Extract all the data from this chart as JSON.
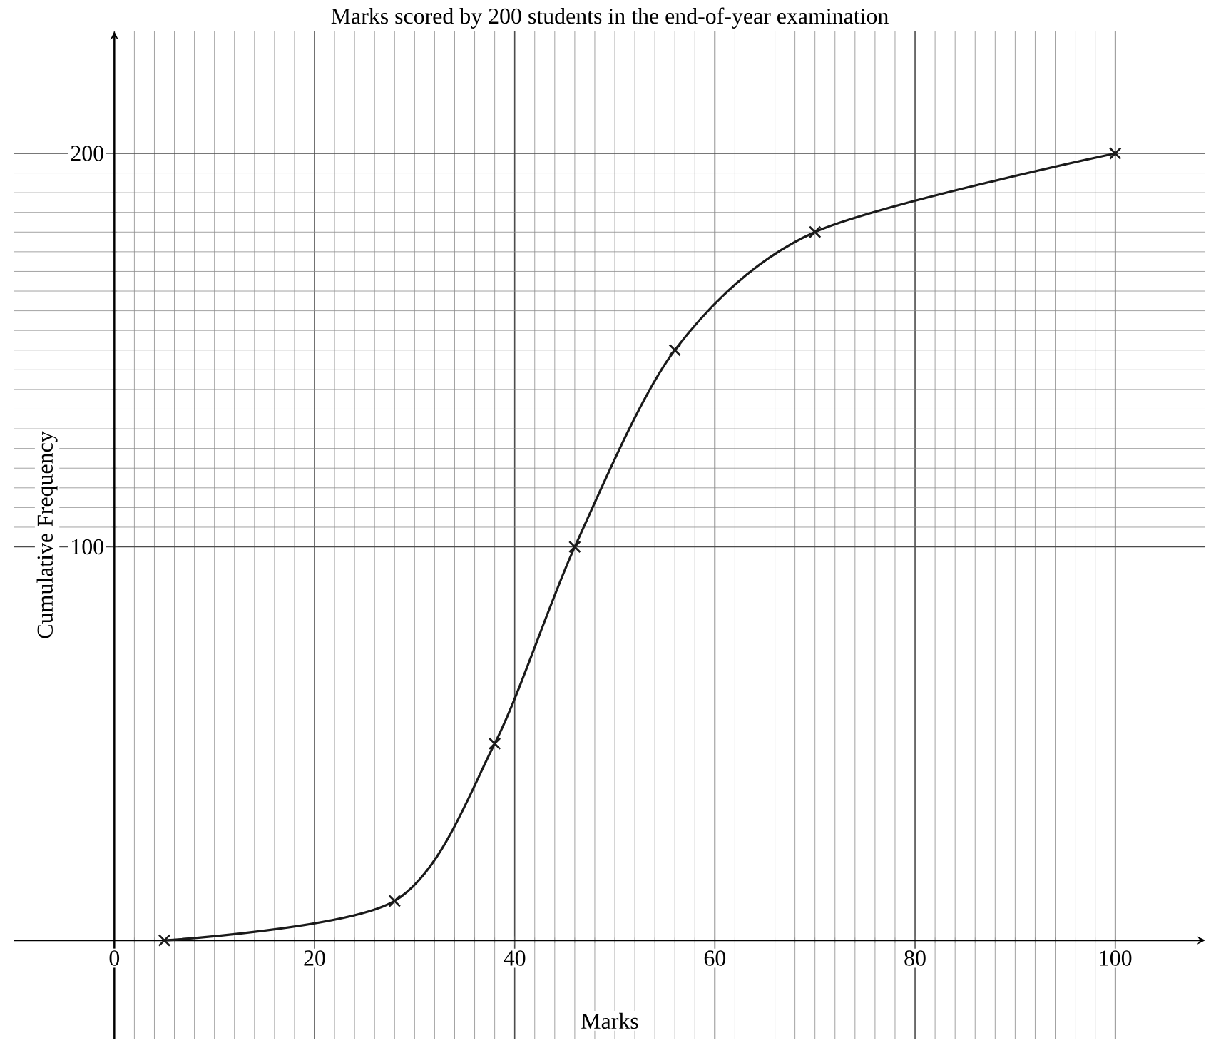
{
  "chart_data": {
    "type": "line",
    "title": "Marks scored by 200 students in the end-of-year examination",
    "xlabel": "Marks",
    "ylabel": "Cumulative Frequency",
    "x": [
      5,
      28,
      38,
      46,
      56,
      70,
      100
    ],
    "series": [
      {
        "color": "#1a1a1a",
        "values": [
          0,
          10,
          50,
          100,
          150,
          180,
          200
        ]
      }
    ],
    "xlim": [
      -10,
      109
    ],
    "ylim": [
      -25,
      231
    ],
    "xticks": [
      0,
      20,
      40,
      60,
      80,
      100
    ],
    "yticks": [
      100,
      200
    ],
    "grid": true,
    "marker": "cross",
    "line_style": "solid"
  }
}
